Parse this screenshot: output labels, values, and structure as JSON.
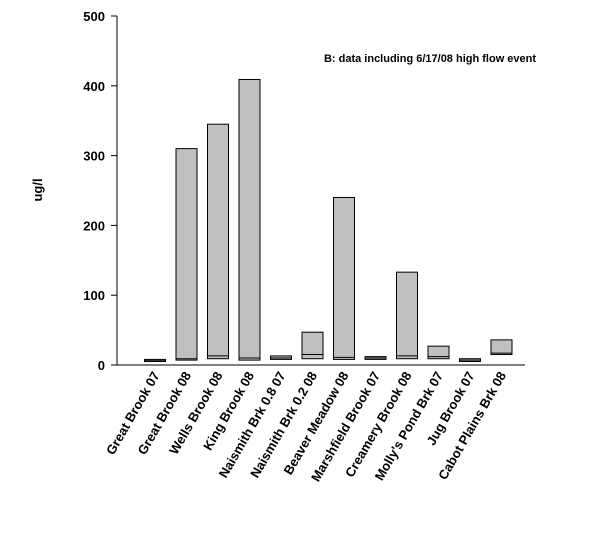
{
  "chart_data": {
    "type": "floating_bar",
    "annotation": "B: data including 6/17/08 high flow event",
    "y_label": "ug/l",
    "categories": [
      "Great Brook 07",
      "Great Brook 08",
      "Wells Brook  08",
      "King Brook   08",
      "Naismith Brk 0.8 07",
      "Naismith Brk 0.2 08",
      "Beaver Meadow  08",
      "Marshfield Brook 07",
      "Creamery Brook  08",
      "Molly's Pond Brk  07",
      "Jug Brook  07",
      "Cabot Plains Brk  08"
    ],
    "low": [
      5,
      7,
      9,
      7,
      8,
      9,
      8,
      8,
      9,
      9,
      5,
      15
    ],
    "median": [
      6,
      9,
      13,
      10,
      10,
      15,
      11,
      10,
      13,
      12,
      7,
      17
    ],
    "high": [
      8,
      310,
      345,
      409,
      13,
      47,
      240,
      12,
      133,
      27,
      9,
      36
    ],
    "color": "#c0c0c0",
    "ylim": [
      0,
      500
    ],
    "yticks": [
      0,
      100,
      200,
      300,
      400,
      500
    ]
  }
}
